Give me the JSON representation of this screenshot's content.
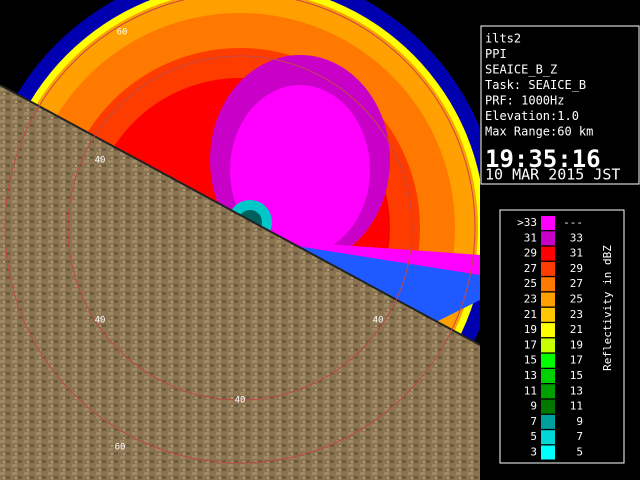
{
  "panel": {
    "lines": [
      "ilts2",
      "PPI",
      "SEAICE_B_Z",
      "Task: SEAICE_B",
      "PRF: 1000Hz",
      "Elevation:1.0",
      "Max Range:60 km"
    ],
    "time": "19:35:16",
    "date": "10 MAR 2015 JST"
  },
  "rings": {
    "labels": [
      "60",
      "40",
      "40",
      "40",
      "40",
      "60"
    ]
  },
  "legend": {
    "title": "Reflectivity in dBZ",
    "rows": [
      {
        "low": ">33",
        "high": "---",
        "color": "#ff00ff"
      },
      {
        "low": "31",
        "high": "33",
        "color": "#c800c8"
      },
      {
        "low": "29",
        "high": "31",
        "color": "#ff0000"
      },
      {
        "low": "27",
        "high": "29",
        "color": "#ff3c00"
      },
      {
        "low": "25",
        "high": "27",
        "color": "#ff7800"
      },
      {
        "low": "23",
        "high": "25",
        "color": "#ffa000"
      },
      {
        "low": "21",
        "high": "23",
        "color": "#ffc800"
      },
      {
        "low": "19",
        "high": "21",
        "color": "#ffff00"
      },
      {
        "low": "17",
        "high": "19",
        "color": "#c8ff00"
      },
      {
        "low": "15",
        "high": "17",
        "color": "#00ff00"
      },
      {
        "low": "13",
        "high": "15",
        "color": "#00d000"
      },
      {
        "low": "11",
        "high": "13",
        "color": "#00a000"
      },
      {
        "low": "9",
        "high": "11",
        "color": "#007800"
      },
      {
        "low": "7",
        "high": "9",
        "color": "#00a0a0"
      },
      {
        "low": "5",
        "high": "7",
        "color": "#00d8d8"
      },
      {
        "low": "3",
        "high": "5",
        "color": "#00ffff"
      }
    ]
  }
}
